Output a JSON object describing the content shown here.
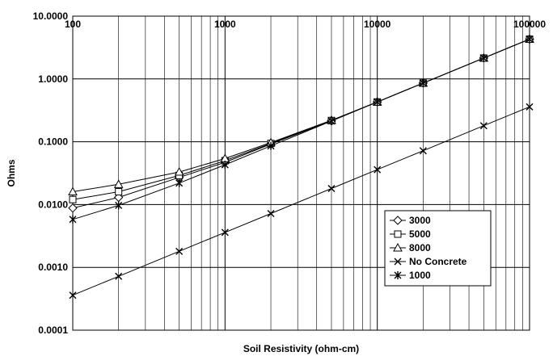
{
  "chart_data": {
    "type": "line",
    "xlabel": "Soil Resistivity (ohm-cm)",
    "ylabel": "Ohms",
    "x_scale": "log",
    "y_scale": "log",
    "xlim": [
      100,
      100000
    ],
    "ylim": [
      0.0001,
      10
    ],
    "grid": true,
    "legend_position": "bottom-right",
    "x_ticks": [
      {
        "value": 100,
        "label": "100"
      },
      {
        "value": 1000,
        "label": "1000"
      },
      {
        "value": 10000,
        "label": "10000"
      },
      {
        "value": 100000,
        "label": "100000"
      }
    ],
    "y_ticks": [
      {
        "value": 10,
        "label": "10.0000"
      },
      {
        "value": 1,
        "label": "1.0000"
      },
      {
        "value": 0.1,
        "label": "0.1000"
      },
      {
        "value": 0.01,
        "label": "0.0100"
      },
      {
        "value": 0.001,
        "label": "0.0010"
      },
      {
        "value": 0.0001,
        "label": "0.0001"
      }
    ],
    "x": [
      100,
      200,
      500,
      1000,
      2000,
      5000,
      10000,
      20000,
      50000,
      100000
    ],
    "series": [
      {
        "name": "3000",
        "marker": "diamond",
        "values": [
          0.0088,
          0.013,
          0.027,
          0.047,
          0.092,
          0.215,
          0.43,
          0.86,
          2.15,
          4.3
        ]
      },
      {
        "name": "5000",
        "marker": "square",
        "values": [
          0.012,
          0.016,
          0.029,
          0.05,
          0.094,
          0.218,
          0.43,
          0.86,
          2.15,
          4.3
        ]
      },
      {
        "name": "8000",
        "marker": "triangle",
        "values": [
          0.016,
          0.021,
          0.033,
          0.054,
          0.097,
          0.22,
          0.43,
          0.86,
          2.15,
          4.3
        ]
      },
      {
        "name": "No Concrete",
        "marker": "x",
        "values": [
          0.00036,
          0.00072,
          0.0018,
          0.0036,
          0.0072,
          0.018,
          0.036,
          0.072,
          0.18,
          0.36
        ]
      },
      {
        "name": "1000",
        "marker": "asterisk",
        "values": [
          0.0058,
          0.0097,
          0.022,
          0.043,
          0.086,
          0.214,
          0.43,
          0.86,
          2.15,
          4.3
        ]
      }
    ]
  }
}
